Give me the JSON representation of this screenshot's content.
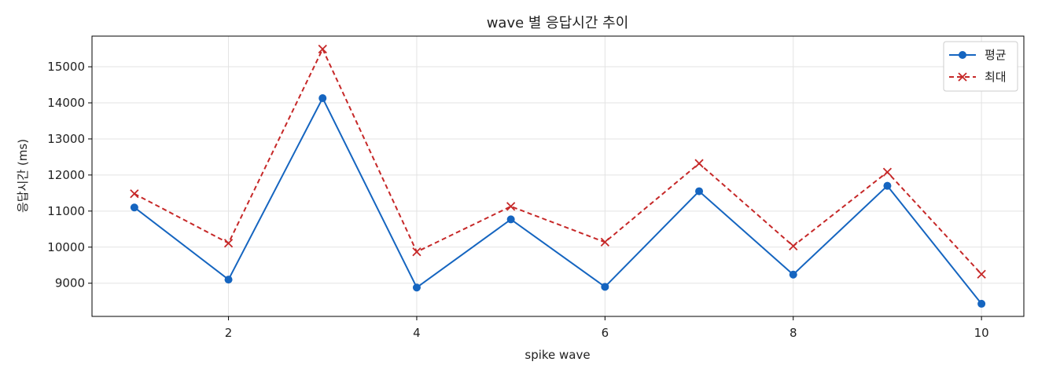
{
  "chart_data": {
    "type": "line",
    "title": "wave 별 응답시간 추이",
    "xlabel": "spike wave",
    "ylabel": "응답시간 (ms)",
    "x": [
      1,
      2,
      3,
      4,
      5,
      6,
      7,
      8,
      9,
      10
    ],
    "xlim": [
      0.55,
      10.45
    ],
    "ylim": [
      8080,
      15850
    ],
    "xticks": [
      2,
      4,
      6,
      8,
      10
    ],
    "yticks": [
      9000,
      10000,
      11000,
      12000,
      13000,
      14000,
      15000
    ],
    "grid": true,
    "legend_position": "top-right",
    "series": [
      {
        "name": "평균",
        "values": [
          11100,
          9100,
          14130,
          8880,
          10770,
          8900,
          11550,
          9240,
          11700,
          8430
        ],
        "color": "#1565c0",
        "line_style": "solid",
        "marker": "circle"
      },
      {
        "name": "최대",
        "values": [
          11480,
          10110,
          15490,
          9870,
          11130,
          10140,
          12320,
          10030,
          12080,
          9250
        ],
        "color": "#c62828",
        "line_style": "dashed",
        "marker": "x"
      }
    ]
  }
}
